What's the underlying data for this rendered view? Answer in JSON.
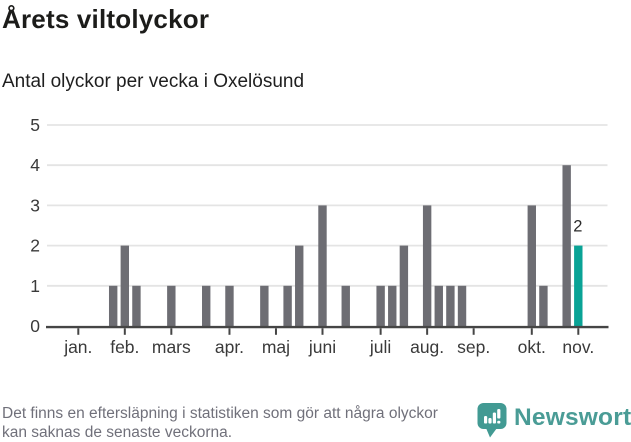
{
  "header": {
    "title": "Årets viltolyckor",
    "subtitle": "Antal olyckor per vecka i Oxelösund"
  },
  "chart_data": {
    "type": "bar",
    "title": "Årets viltolyckor",
    "subtitle": "Antal olyckor per vecka i Oxelösund",
    "ylabel": "",
    "xlabel": "",
    "ylim": [
      0,
      5
    ],
    "y_ticks": [
      0,
      1,
      2,
      3,
      4,
      5
    ],
    "grid": "horizontal",
    "legend": "none",
    "x_axis": {
      "unit": "week-of-year",
      "weeks_total": 44,
      "month_ticks": [
        {
          "label": "jan.",
          "week": 1
        },
        {
          "label": "feb.",
          "week": 5
        },
        {
          "label": "mars",
          "week": 9
        },
        {
          "label": "apr.",
          "week": 14
        },
        {
          "label": "maj",
          "week": 18
        },
        {
          "label": "juni",
          "week": 22
        },
        {
          "label": "juli",
          "week": 27
        },
        {
          "label": "aug.",
          "week": 31
        },
        {
          "label": "sep.",
          "week": 35
        },
        {
          "label": "okt.",
          "week": 40
        },
        {
          "label": "nov.",
          "week": 44
        }
      ]
    },
    "bars": [
      {
        "week": 4,
        "value": 1
      },
      {
        "week": 5,
        "value": 2
      },
      {
        "week": 6,
        "value": 1
      },
      {
        "week": 9,
        "value": 1
      },
      {
        "week": 12,
        "value": 1
      },
      {
        "week": 14,
        "value": 1
      },
      {
        "week": 17,
        "value": 1
      },
      {
        "week": 19,
        "value": 1
      },
      {
        "week": 20,
        "value": 2
      },
      {
        "week": 22,
        "value": 3
      },
      {
        "week": 24,
        "value": 1
      },
      {
        "week": 27,
        "value": 1
      },
      {
        "week": 28,
        "value": 1
      },
      {
        "week": 29,
        "value": 2
      },
      {
        "week": 31,
        "value": 3
      },
      {
        "week": 32,
        "value": 1
      },
      {
        "week": 33,
        "value": 1
      },
      {
        "week": 34,
        "value": 1
      },
      {
        "week": 40,
        "value": 3
      },
      {
        "week": 41,
        "value": 1
      },
      {
        "week": 43,
        "value": 4
      },
      {
        "week": 44,
        "value": 2,
        "highlight": true,
        "label": "2"
      }
    ],
    "colors": {
      "bar": "#6d6d73",
      "highlight": "#0aa396",
      "grid": "#e4e4e4",
      "axis": "#454545",
      "tick_label": "#3a3a3a",
      "value_label": "#2b2b2b"
    }
  },
  "footer": {
    "note": "Det finns en eftersläpning i statistiken som gör att några olyckor kan saknas de senaste veckorna.",
    "brand": "Newsworthy",
    "brand_color": "#4a9c96"
  }
}
